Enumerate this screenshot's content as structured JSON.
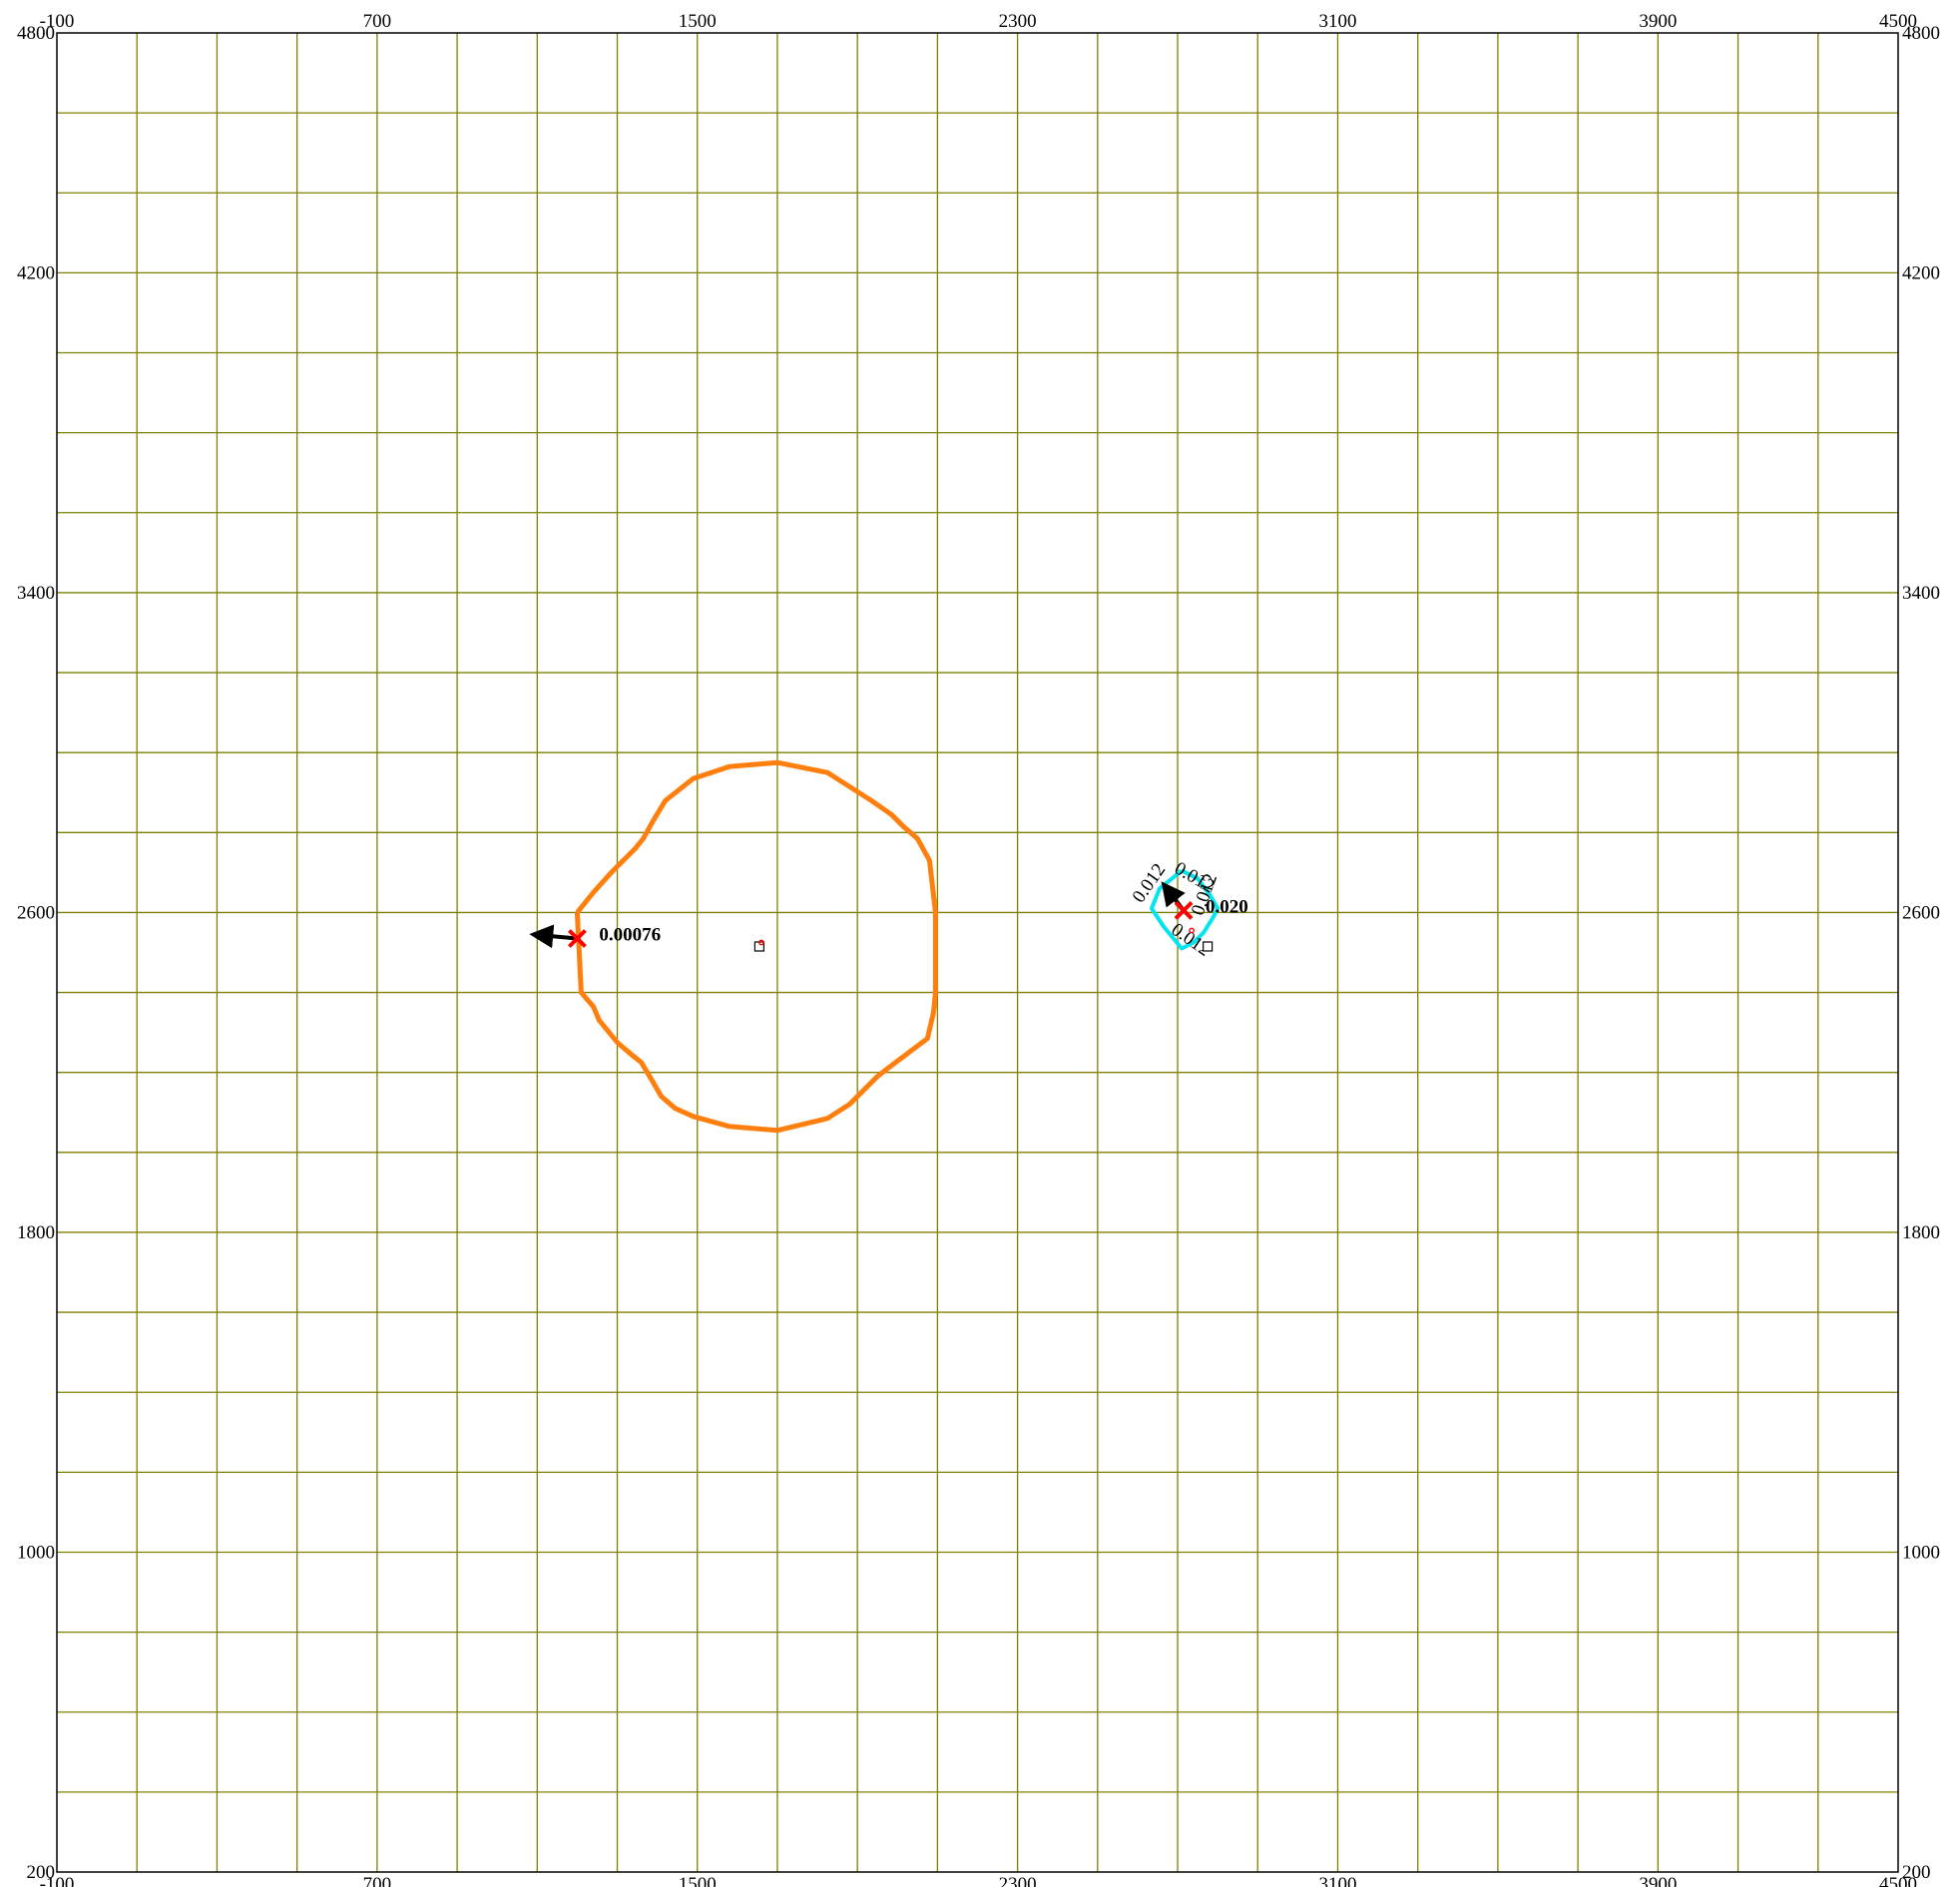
{
  "chart_data": {
    "type": "contour",
    "title": "",
    "xlabel": "",
    "ylabel": "",
    "xlim": [
      -100,
      4500
    ],
    "ylim": [
      200,
      4800
    ],
    "grid": true,
    "grid_step": 200,
    "x_ticks": [
      {
        "value": -100,
        "label": "-100"
      },
      {
        "value": 700,
        "label": "700"
      },
      {
        "value": 1500,
        "label": "1500"
      },
      {
        "value": 2300,
        "label": "2300"
      },
      {
        "value": 3100,
        "label": "3100"
      },
      {
        "value": 3900,
        "label": "3900"
      },
      {
        "value": 4500,
        "label": "4500"
      }
    ],
    "y_ticks": [
      {
        "value": 200,
        "label": "200"
      },
      {
        "value": 1000,
        "label": "1000"
      },
      {
        "value": 1800,
        "label": "1800"
      },
      {
        "value": 2600,
        "label": "2600"
      },
      {
        "value": 3400,
        "label": "3400"
      },
      {
        "value": 4200,
        "label": "4200"
      },
      {
        "value": 4800,
        "label": "4800"
      }
    ],
    "colors": {
      "grid": "#808000",
      "frame": "#000000",
      "orange_contour": "#ff7f0e",
      "cyan_contour": "#00e5ee",
      "marker": "#ff0000",
      "arrow": "#000000"
    },
    "contours": [
      {
        "color": "orange",
        "points": [
          [
            1200,
            2600
          ],
          [
            1240,
            2650
          ],
          [
            1285,
            2700
          ],
          [
            1345,
            2760
          ],
          [
            1365,
            2785
          ],
          [
            1390,
            2830
          ],
          [
            1420,
            2880
          ],
          [
            1490,
            2935
          ],
          [
            1580,
            2965
          ],
          [
            1700,
            2975
          ],
          [
            1825,
            2950
          ],
          [
            1935,
            2880
          ],
          [
            1985,
            2845
          ],
          [
            2015,
            2815
          ],
          [
            2050,
            2785
          ],
          [
            2080,
            2730
          ],
          [
            2095,
            2600
          ],
          [
            2095,
            2400
          ],
          [
            2090,
            2350
          ],
          [
            2075,
            2285
          ],
          [
            2035,
            2255
          ],
          [
            1995,
            2225
          ],
          [
            1950,
            2190
          ],
          [
            1910,
            2150
          ],
          [
            1880,
            2120
          ],
          [
            1825,
            2085
          ],
          [
            1700,
            2055
          ],
          [
            1580,
            2065
          ],
          [
            1490,
            2090
          ],
          [
            1445,
            2110
          ],
          [
            1410,
            2140
          ],
          [
            1390,
            2175
          ],
          [
            1375,
            2200
          ],
          [
            1360,
            2225
          ],
          [
            1335,
            2245
          ],
          [
            1300,
            2275
          ],
          [
            1255,
            2330
          ],
          [
            1240,
            2365
          ],
          [
            1210,
            2400
          ],
          [
            1200,
            2600
          ]
        ]
      },
      {
        "color": "cyan",
        "points": [
          [
            2710,
            2705
          ],
          [
            2655,
            2660
          ],
          [
            2635,
            2610
          ],
          [
            2665,
            2565
          ],
          [
            2710,
            2510
          ],
          [
            2740,
            2525
          ],
          [
            2765,
            2550
          ],
          [
            2790,
            2590
          ],
          [
            2800,
            2610
          ],
          [
            2780,
            2645
          ],
          [
            2750,
            2685
          ],
          [
            2710,
            2705
          ]
        ]
      }
    ],
    "markers": [
      {
        "type": "x",
        "x": 1200,
        "y": 2535,
        "label": "0.00076",
        "arrow_to": [
          1090,
          2545
        ]
      },
      {
        "type": "x",
        "x": 2715,
        "y": 2605,
        "label": "0.020",
        "arrow_to": [
          2665,
          2670
        ]
      }
    ],
    "squares": [
      {
        "x": 1655,
        "y": 2515
      },
      {
        "x": 2775,
        "y": 2515
      }
    ],
    "small_circles": [
      {
        "x": 1660,
        "y": 2525
      },
      {
        "x": 2735,
        "y": 2555
      }
    ],
    "contour_labels": [
      {
        "text": "0.012",
        "x": 2640,
        "y": 2665,
        "angle": -55
      },
      {
        "text": "0.012",
        "x": 2735,
        "y": 2675,
        "angle": 30
      },
      {
        "text": "0.012",
        "x": 2780,
        "y": 2640,
        "angle": -70
      },
      {
        "text": "0.012",
        "x": 2725,
        "y": 2520,
        "angle": 35
      }
    ]
  }
}
